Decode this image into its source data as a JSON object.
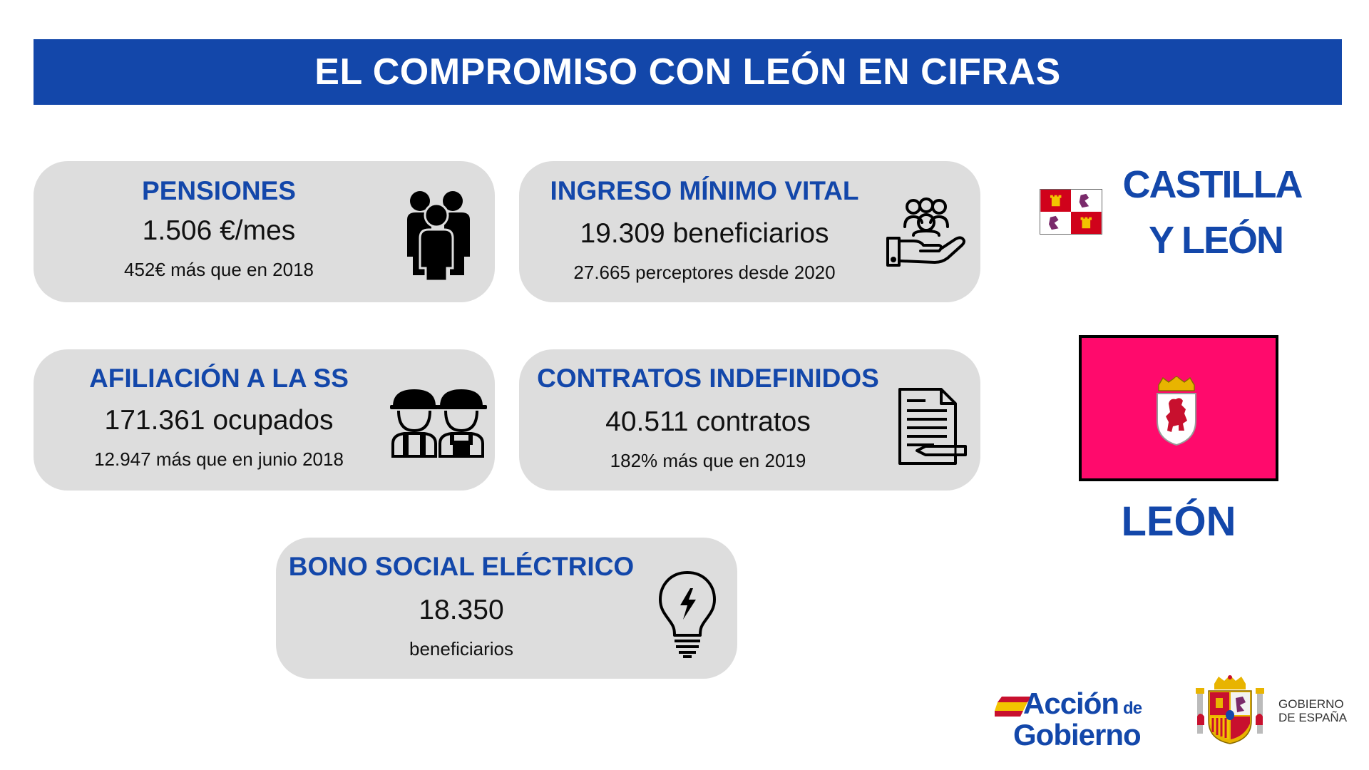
{
  "banner": {
    "title": "EL COMPROMISO CON LEÓN EN CIFRAS"
  },
  "cards": {
    "pensiones": {
      "title": "PENSIONES",
      "value": "1.506 €/mes",
      "sub": "452€ más que en 2018",
      "icon": "people-group-icon"
    },
    "imv": {
      "title": "INGRESO MÍNIMO VITAL",
      "value": "19.309 beneficiarios",
      "sub": "27.665 perceptores desde 2020",
      "icon": "hand-people-icon"
    },
    "afiliacion": {
      "title": "AFILIACIÓN A LA SS",
      "value": "171.361 ocupados",
      "sub": "12.947 más que en junio 2018",
      "icon": "workers-icon"
    },
    "contratos": {
      "title": "CONTRATOS INDEFINIDOS",
      "value": "40.511 contratos",
      "sub": "182% más que en 2019",
      "icon": "contract-document-icon"
    },
    "bono": {
      "title": "BONO SOCIAL ELÉCTRICO",
      "value": "18.350",
      "sub": "beneficiarios",
      "icon": "lightbulb-icon"
    }
  },
  "region": {
    "line1": "CASTILLA",
    "line2": "Y LEÓN"
  },
  "province": {
    "name": "LEÓN"
  },
  "logos": {
    "accion_line1": "Acción",
    "accion_de": "de",
    "accion_line2": "Gobierno",
    "gobierno_line1": "GOBIERNO",
    "gobierno_line2": "DE ESPAÑA"
  },
  "colors": {
    "brand_blue": "#1347aa",
    "card_bg": "#dddddd",
    "leon_flag": "#ff0a6c"
  }
}
